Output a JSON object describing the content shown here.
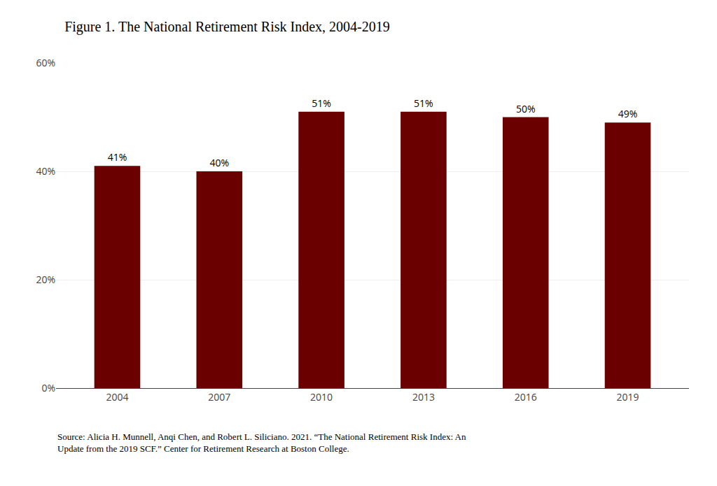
{
  "chart_data": {
    "type": "bar",
    "title": "Figure 1. The National Retirement Risk Index, 2004-2019",
    "categories": [
      "2004",
      "2007",
      "2010",
      "2013",
      "2016",
      "2019"
    ],
    "values": [
      41,
      40,
      51,
      51,
      50,
      49
    ],
    "value_labels": [
      "41%",
      "40%",
      "51%",
      "51%",
      "50%",
      "49%"
    ],
    "data_labels": true,
    "color": "#6B0000",
    "ylim": [
      0,
      60
    ],
    "yticks": [
      {
        "value": 0,
        "label": "0%"
      },
      {
        "value": 20,
        "label": "20%"
      },
      {
        "value": 40,
        "label": "40%"
      },
      {
        "value": 60,
        "label": "60%"
      }
    ],
    "grid": true,
    "annotations": [
      "Source: Alicia H. Munnell, Anqi Chen, and Robert L. Siliciano. 2021. “The National Retirement Risk Index: An\nUpdate from the 2019 SCF.” Center for Retirement Research at Boston College."
    ]
  }
}
